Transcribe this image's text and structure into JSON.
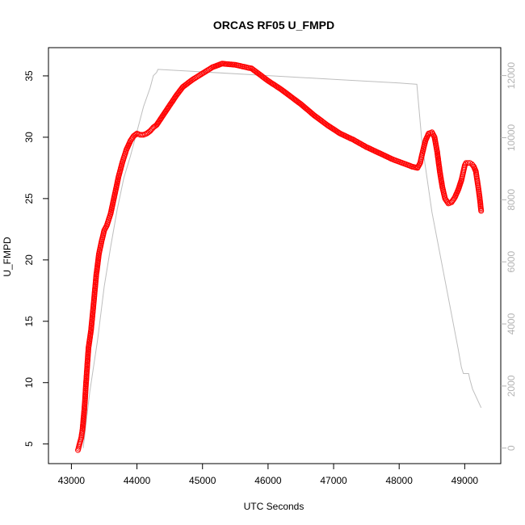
{
  "chart_data": {
    "type": "scatter",
    "title": "ORCAS RF05 U_FMPD",
    "xlabel": "UTC Seconds",
    "ylabel": "U_FMPD",
    "xlim": [
      42650,
      49550
    ],
    "ylim": [
      3.4,
      37.3
    ],
    "y2lim": [
      -500,
      12900
    ],
    "x_ticks": [
      43000,
      44000,
      45000,
      46000,
      47000,
      48000,
      49000
    ],
    "y_ticks": [
      5,
      10,
      15,
      20,
      25,
      30,
      35
    ],
    "y2_ticks": [
      0,
      2000,
      4000,
      6000,
      8000,
      10000,
      12000
    ],
    "grid": false,
    "series": [
      {
        "style": "points",
        "color": "#ff0000",
        "x": [
          43100,
          43120,
          43150,
          43170,
          43200,
          43230,
          43260,
          43300,
          43340,
          43380,
          43420,
          43460,
          43500,
          43540,
          43600,
          43660,
          43720,
          43780,
          43840,
          43900,
          43950,
          44000,
          44050,
          44100,
          44150,
          44200,
          44250,
          44300,
          44400,
          44500,
          44600,
          44700,
          44850,
          45000,
          45150,
          45300,
          45500,
          45750,
          46000,
          46200,
          46500,
          46700,
          46900,
          47100,
          47300,
          47500,
          47700,
          47900,
          48100,
          48200,
          48280,
          48320,
          48350,
          48400,
          48450,
          48500,
          48540,
          48580,
          48620,
          48660,
          48700,
          48750,
          48800,
          48850,
          48900,
          48950,
          48980,
          49000,
          49020,
          49050,
          49080,
          49110,
          49140,
          49170,
          49190,
          49210,
          49230,
          49250
        ],
        "y": [
          4.5,
          4.9,
          5.5,
          6.2,
          8.0,
          10.5,
          12.8,
          14.3,
          16.5,
          18.8,
          20.5,
          21.5,
          22.4,
          22.8,
          23.8,
          25.3,
          26.8,
          28.0,
          29.0,
          29.7,
          30.1,
          30.3,
          30.2,
          30.2,
          30.3,
          30.5,
          30.8,
          31.0,
          31.8,
          32.6,
          33.4,
          34.1,
          34.7,
          35.2,
          35.7,
          36.0,
          35.9,
          35.6,
          34.6,
          33.9,
          32.7,
          31.8,
          31.0,
          30.3,
          29.8,
          29.2,
          28.7,
          28.2,
          27.8,
          27.6,
          27.5,
          27.9,
          28.6,
          29.7,
          30.3,
          30.4,
          30.0,
          28.8,
          27.2,
          25.9,
          25.0,
          24.6,
          24.7,
          25.1,
          25.7,
          26.5,
          27.2,
          27.7,
          27.9,
          27.9,
          27.9,
          27.8,
          27.6,
          27.2,
          26.5,
          25.8,
          25.0,
          24.0
        ]
      },
      {
        "style": "line",
        "axis": "right",
        "color": "#bebebe",
        "x": [
          43180,
          43280,
          43400,
          43500,
          43600,
          43700,
          43800,
          43900,
          44000,
          44100,
          44200,
          44250,
          44300,
          44320,
          45000,
          46000,
          47000,
          48000,
          48270,
          48350,
          48500,
          48700,
          48900,
          48950,
          48980,
          49020,
          49060,
          49080,
          49120,
          49250
        ],
        "y": [
          0,
          1800,
          3500,
          5200,
          6500,
          7700,
          8700,
          9400,
          10200,
          11000,
          11600,
          12000,
          12100,
          12200,
          12120,
          12000,
          11880,
          11760,
          11720,
          9800,
          7600,
          5400,
          3200,
          2600,
          2400,
          2400,
          2400,
          2200,
          1900,
          1300
        ]
      }
    ]
  }
}
